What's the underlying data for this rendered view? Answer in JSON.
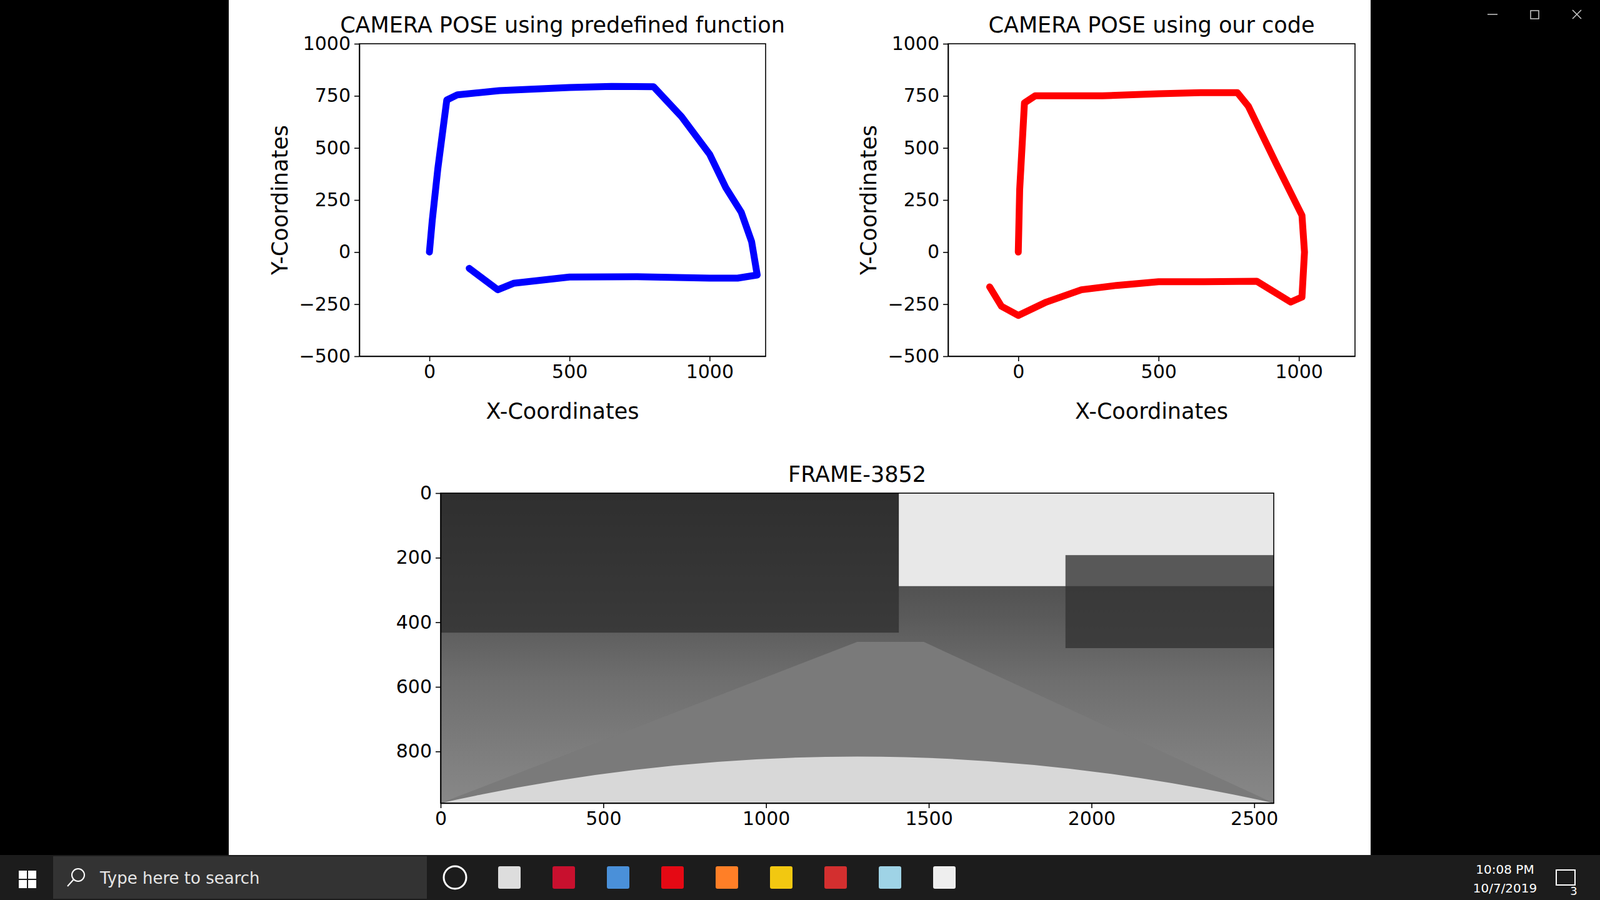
{
  "chart_data": [
    {
      "type": "line",
      "title": "CAMERA POSE using predefined function",
      "x_label": "X-Coordinates",
      "y_label": "Y-Coordinates",
      "xlim": [
        -250,
        1200
      ],
      "ylim": [
        -500,
        1000
      ],
      "xticks": [
        0,
        500,
        1000
      ],
      "yticks": [
        {
          "value": -500,
          "label": "−500"
        },
        {
          "value": -250,
          "label": "−250"
        },
        0,
        250,
        500,
        750,
        1000
      ],
      "series": [
        {
          "color": "#0000ff",
          "x": [
            0,
            10,
            30,
            62,
            100,
            250,
            500,
            650,
            800,
            900,
            1000,
            1058,
            1113,
            1150,
            1170,
            1100,
            1000,
            742,
            500,
            300,
            244,
            142
          ],
          "values": [
            0,
            150,
            400,
            730,
            755,
            775,
            790,
            795,
            794,
            650,
            470,
            309,
            191,
            50,
            -110,
            -125,
            -125,
            -118,
            -120,
            -150,
            -181,
            -78
          ]
        }
      ]
    },
    {
      "type": "line",
      "title": "CAMERA POSE using our code",
      "x_label": "X-Coordinates",
      "y_label": "Y-Coordinates",
      "xlim": [
        -250,
        1200
      ],
      "ylim": [
        -500,
        1000
      ],
      "xticks": [
        0,
        500,
        1000
      ],
      "yticks": [
        {
          "value": -500,
          "label": "−500"
        },
        {
          "value": -250,
          "label": "−250"
        },
        0,
        250,
        500,
        750,
        1000
      ],
      "series": [
        {
          "color": "#ff0000",
          "x": [
            0,
            5,
            22,
            60,
            300,
            500,
            650,
            781,
            820,
            920,
            1011,
            1020,
            1011,
            971,
            850,
            662,
            500,
            350,
            225,
            100,
            0,
            -60,
            -102
          ],
          "values": [
            0,
            300,
            716,
            750,
            750,
            760,
            765,
            765,
            700,
            422,
            176,
            0,
            -216,
            -240,
            -140,
            -142,
            -142,
            -160,
            -181,
            -240,
            -304,
            -260,
            -167
          ]
        }
      ]
    },
    {
      "type": "image",
      "title": "FRAME-3852",
      "xlim": [
        0,
        2560
      ],
      "ylim": [
        960,
        0
      ],
      "xticks": [
        0,
        500,
        1000,
        1500,
        2000,
        2500
      ],
      "yticks": [
        0,
        200,
        400,
        600,
        800
      ]
    }
  ],
  "taskbar": {
    "search": "Type here to search",
    "time": "10:08 PM",
    "date": "10/7/2019",
    "notifications": 3
  }
}
